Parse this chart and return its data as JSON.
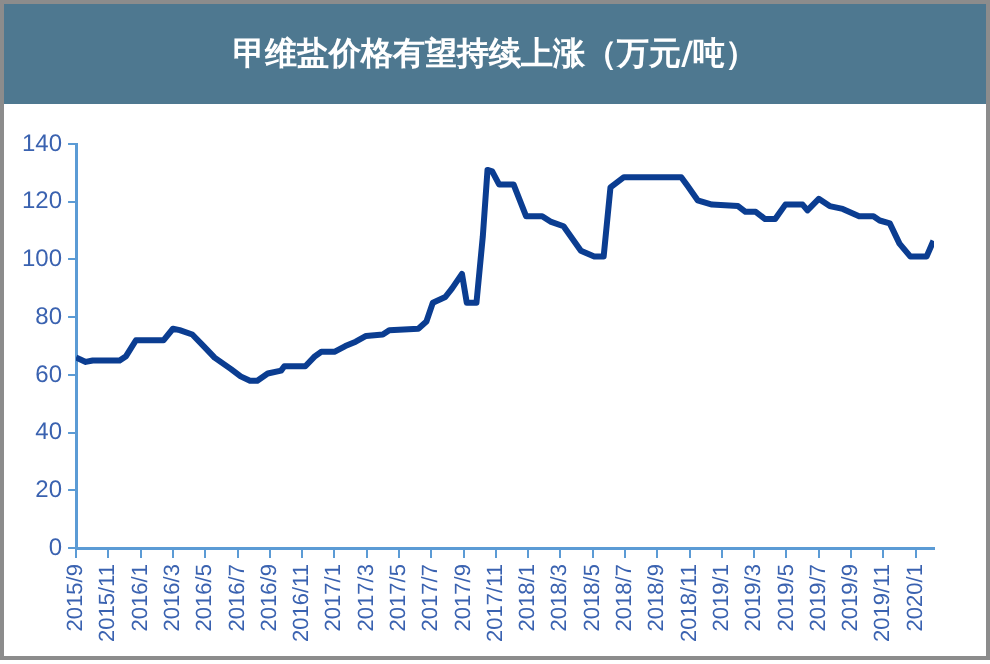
{
  "chart_data": {
    "type": "line",
    "title": "甲维盐价格有望持续上涨（万元/吨）",
    "x": [
      "2015-09-01",
      "2015-09-19",
      "2015-10-02",
      "2015-11-22",
      "2015-12-04",
      "2015-12-23",
      "2016-02-13",
      "2016-03-01",
      "2016-03-14",
      "2016-04-07",
      "2016-04-28",
      "2016-05-19",
      "2016-06-19",
      "2016-07-07",
      "2016-07-25",
      "2016-08-08",
      "2016-08-28",
      "2016-09-22",
      "2016-09-28",
      "2016-11-07",
      "2016-11-25",
      "2016-12-07",
      "2017-01-01",
      "2017-01-22",
      "2017-02-10",
      "2017-02-28",
      "2017-04-01",
      "2017-04-13",
      "2017-06-07",
      "2017-06-22",
      "2017-07-04",
      "2017-07-28",
      "2017-08-10",
      "2017-08-29",
      "2017-09-07",
      "2017-09-25",
      "2017-10-07",
      "2017-10-16",
      "2017-10-25",
      "2017-11-07",
      "2017-12-04",
      "2017-12-28",
      "2018-01-28",
      "2018-02-13",
      "2018-03-07",
      "2018-04-09",
      "2018-05-04",
      "2018-05-22",
      "2018-06-04",
      "2018-06-29",
      "2018-10-16",
      "2018-10-28",
      "2018-11-16",
      "2018-12-13",
      "2019-02-01",
      "2019-02-14",
      "2019-03-04",
      "2019-03-22",
      "2019-04-10",
      "2019-04-29",
      "2019-06-01",
      "2019-06-10",
      "2019-07-01",
      "2019-07-22",
      "2019-08-16",
      "2019-09-16",
      "2019-10-13",
      "2019-10-25",
      "2019-11-13",
      "2019-12-01",
      "2019-12-22",
      "2020-01-22",
      "2020-02-04"
    ],
    "series": [
      {
        "color": "#0b3d91",
        "values": [
          66,
          64.5,
          65,
          65,
          66.5,
          72,
          72,
          76,
          75.5,
          74,
          70,
          66,
          62,
          59.5,
          58,
          58,
          60.5,
          61.5,
          63,
          63,
          66.5,
          68,
          68,
          70,
          71.5,
          73.5,
          74,
          75.5,
          76,
          78.5,
          85,
          87,
          90,
          95,
          85,
          85,
          108,
          131,
          130.5,
          126,
          126,
          115,
          115,
          113,
          111.5,
          103,
          101,
          101,
          125,
          128.5,
          128.5,
          125.5,
          120.5,
          119,
          118.5,
          116.5,
          116.5,
          114,
          114,
          119,
          119,
          117,
          121,
          118.5,
          117.5,
          115,
          115,
          113.5,
          112.5,
          105.5,
          101,
          101,
          106.5
        ]
      }
    ],
    "xlim": [
      "2015-09-01",
      "2020-02-05"
    ],
    "xticks": [
      {
        "value": "2015-09",
        "label": "2015/9"
      },
      {
        "value": "2015-11",
        "label": "2015/11"
      },
      {
        "value": "2016-01",
        "label": "2016/1"
      },
      {
        "value": "2016-03",
        "label": "2016/3"
      },
      {
        "value": "2016-05",
        "label": "2016/5"
      },
      {
        "value": "2016-07",
        "label": "2016/7"
      },
      {
        "value": "2016-09",
        "label": "2016/9"
      },
      {
        "value": "2016-11",
        "label": "2016/11"
      },
      {
        "value": "2017-01",
        "label": "2017/1"
      },
      {
        "value": "2017-03",
        "label": "2017/3"
      },
      {
        "value": "2017-05",
        "label": "2017/5"
      },
      {
        "value": "2017-07",
        "label": "2017/7"
      },
      {
        "value": "2017-09",
        "label": "2017/9"
      },
      {
        "value": "2017-11",
        "label": "2017/11"
      },
      {
        "value": "2018-01",
        "label": "2018/1"
      },
      {
        "value": "2018-03",
        "label": "2018/3"
      },
      {
        "value": "2018-05",
        "label": "2018/5"
      },
      {
        "value": "2018-07",
        "label": "2018/7"
      },
      {
        "value": "2018-09",
        "label": "2018/9"
      },
      {
        "value": "2018-11",
        "label": "2018/11"
      },
      {
        "value": "2019-01",
        "label": "2019/1"
      },
      {
        "value": "2019-03",
        "label": "2019/3"
      },
      {
        "value": "2019-05",
        "label": "2019/5"
      },
      {
        "value": "2019-07",
        "label": "2019/7"
      },
      {
        "value": "2019-09",
        "label": "2019/9"
      },
      {
        "value": "2019-11",
        "label": "2019/11"
      },
      {
        "value": "2020-01",
        "label": "2020/1"
      }
    ],
    "ylim": [
      0,
      140
    ],
    "yticks": [
      0,
      20,
      40,
      60,
      80,
      100,
      120,
      140
    ],
    "grid": false,
    "legend": false,
    "marker": "none",
    "line_style": "solid"
  }
}
